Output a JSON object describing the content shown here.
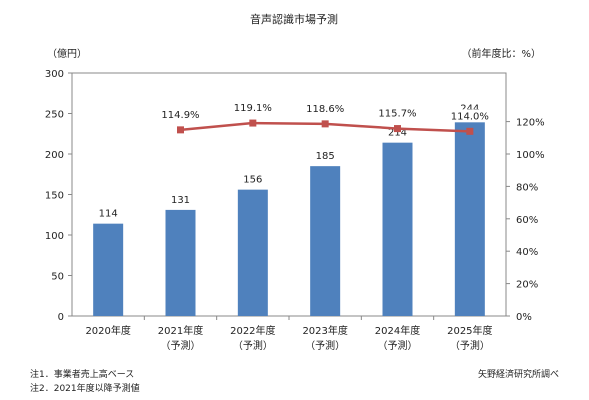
{
  "chart_data": {
    "type": "bar",
    "title": "音声認識市場予測",
    "y_left_unit": "（億円）",
    "y_right_unit": "（前年度比：%）",
    "categories": [
      {
        "line1": "2020年度",
        "line2": ""
      },
      {
        "line1": "2021年度",
        "line2": "（予測）"
      },
      {
        "line1": "2022年度",
        "line2": "（予測）"
      },
      {
        "line1": "2023年度",
        "line2": "（予測）"
      },
      {
        "line1": "2024年度",
        "line2": "（予測）"
      },
      {
        "line1": "2025年度",
        "line2": "（予測）"
      }
    ],
    "series": [
      {
        "kind": "bar",
        "axis": "left",
        "values": [
          114,
          131,
          156,
          185,
          214,
          244
        ],
        "labels": [
          "114",
          "131",
          "156",
          "185",
          "214",
          "244"
        ],
        "color": "#4f81bd"
      },
      {
        "kind": "line",
        "axis": "right",
        "values": [
          null,
          114.9,
          119.1,
          118.6,
          115.7,
          114.0
        ],
        "labels": [
          "",
          "114.9%",
          "119.1%",
          "118.6%",
          "115.7%",
          "114.0%"
        ],
        "color": "#c0504d"
      }
    ],
    "ylim_left": [
      0,
      300
    ],
    "yticks_left": [
      "0",
      "50",
      "100",
      "150",
      "200",
      "250",
      "300"
    ],
    "ylim_right": [
      0,
      150
    ],
    "yticks_right": [
      "0%",
      "20%",
      "40%",
      "60%",
      "80%",
      "100%",
      "120%"
    ],
    "grid": false
  },
  "notes": {
    "note1": "注1．事業者売上高ベース",
    "note2": "注2．2021年度以降予測値",
    "source": "矢野経済研究所調べ"
  }
}
